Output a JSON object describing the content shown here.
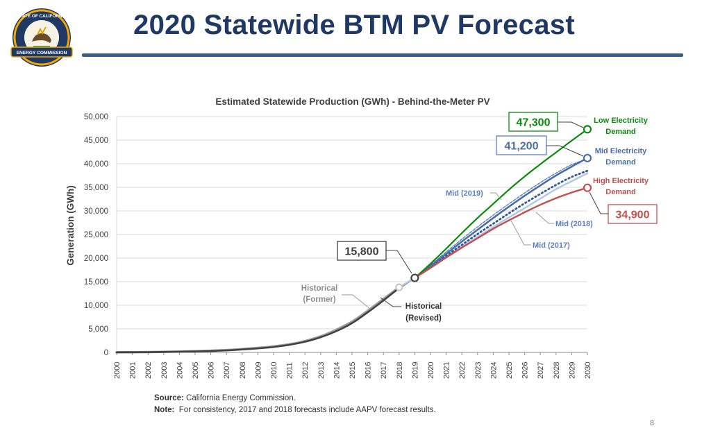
{
  "slide": {
    "title": "2020 Statewide BTM PV Forecast",
    "logo_text_top": "STATE OF CALIFORNIA",
    "logo_text_bottom": "ENERGY COMMISSION",
    "source_label": "Source:",
    "source_text": "California Energy Commission.",
    "note_label": "Note:",
    "note_text": "For consistency, 2017 and 2018 forecasts include AAPV forecast results.",
    "page_number": "8"
  },
  "chart_data": {
    "type": "line",
    "title": "Estimated Statewide Production (GWh) - Behind-the-Meter PV",
    "ylabel": "Generation (GWh)",
    "xlabel": "",
    "ylim": [
      0,
      50000
    ],
    "yticks": [
      0,
      5000,
      10000,
      15000,
      20000,
      25000,
      30000,
      35000,
      40000,
      45000,
      50000
    ],
    "ytick_labels": [
      "0",
      "5,000",
      "10,000",
      "15,000",
      "20,000",
      "25,000",
      "30,000",
      "35,000",
      "40,000",
      "45,000",
      "50,000"
    ],
    "x": [
      2000,
      2001,
      2002,
      2003,
      2004,
      2005,
      2006,
      2007,
      2008,
      2009,
      2010,
      2011,
      2012,
      2013,
      2014,
      2015,
      2016,
      2017,
      2018,
      2019,
      2020,
      2021,
      2022,
      2023,
      2024,
      2025,
      2026,
      2027,
      2028,
      2029,
      2030
    ],
    "xtick_labels": [
      "2000",
      "2001",
      "2002",
      "2003",
      "2004",
      "2005",
      "2006",
      "2007",
      "2008",
      "2009",
      "2010",
      "2011",
      "2012",
      "2013",
      "2014",
      "2015",
      "2016",
      "2017",
      "2018",
      "2019",
      "2020",
      "2021",
      "2022",
      "2023",
      "2024",
      "2025",
      "2026",
      "2027",
      "2028",
      "2029",
      "2030"
    ],
    "grid": true,
    "series": [
      {
        "name": "Historical (Former)",
        "color": "#9a9a9a",
        "style": "solid",
        "x": [
          2000,
          2001,
          2002,
          2003,
          2004,
          2005,
          2006,
          2007,
          2008,
          2009,
          2010,
          2011,
          2012,
          2013,
          2014,
          2015,
          2016,
          2017,
          2018
        ],
        "values": [
          20,
          40,
          70,
          120,
          180,
          250,
          350,
          500,
          700,
          950,
          1250,
          1700,
          2400,
          3400,
          4800,
          6500,
          8800,
          11300,
          13800
        ]
      },
      {
        "name": "Historical (Revised)",
        "color": "#404040",
        "style": "solid",
        "x": [
          2000,
          2001,
          2002,
          2003,
          2004,
          2005,
          2006,
          2007,
          2008,
          2009,
          2010,
          2011,
          2012,
          2013,
          2014,
          2015,
          2016,
          2017,
          2018,
          2019
        ],
        "values": [
          20,
          40,
          60,
          100,
          150,
          210,
          300,
          430,
          620,
          860,
          1150,
          1600,
          2250,
          3200,
          4500,
          6200,
          8500,
          11000,
          13600,
          15800
        ]
      },
      {
        "name": "Mid (2017)",
        "color": "#b4c7e7",
        "style": "solid",
        "x": [
          2018,
          2019,
          2020,
          2021,
          2022,
          2023,
          2024,
          2025,
          2026,
          2027,
          2028,
          2029,
          2030
        ],
        "values": [
          13800,
          15800,
          18000,
          20200,
          22400,
          24500,
          26600,
          28600,
          30600,
          32600,
          34600,
          36300,
          38000
        ]
      },
      {
        "name": "Mid (2018)",
        "color": "#2f5597",
        "style": "dotted",
        "x": [
          2019,
          2020,
          2021,
          2022,
          2023,
          2024,
          2025,
          2026,
          2027,
          2028,
          2029,
          2030
        ],
        "values": [
          15800,
          18100,
          20500,
          22800,
          25100,
          27300,
          29500,
          31600,
          33600,
          35500,
          37200,
          38500
        ]
      },
      {
        "name": "Mid (2019)",
        "color": "#5b7fbf",
        "style": "dashed",
        "x": [
          2019,
          2020,
          2021,
          2022,
          2023,
          2024,
          2025,
          2026,
          2027,
          2028,
          2029,
          2030
        ],
        "values": [
          15800,
          18500,
          21300,
          24000,
          26600,
          29100,
          31500,
          33800,
          36000,
          38000,
          39800,
          41000
        ]
      },
      {
        "name": "Mid Electricity Demand",
        "color": "#4a6fa5",
        "style": "solid",
        "x": [
          2019,
          2020,
          2021,
          2022,
          2023,
          2024,
          2025,
          2026,
          2027,
          2028,
          2029,
          2030
        ],
        "values": [
          15800,
          18300,
          20900,
          23500,
          26000,
          28500,
          30900,
          33200,
          35400,
          37500,
          39400,
          41200
        ]
      },
      {
        "name": "Low Electricity Demand",
        "color": "#0a8a0a",
        "style": "solid",
        "x": [
          2019,
          2020,
          2021,
          2022,
          2023,
          2024,
          2025,
          2026,
          2027,
          2028,
          2029,
          2030
        ],
        "values": [
          15800,
          18800,
          22000,
          25300,
          28500,
          31500,
          34500,
          37300,
          39900,
          42400,
          44900,
          47300
        ]
      },
      {
        "name": "High Electricity Demand",
        "color": "#c0504d",
        "style": "solid",
        "x": [
          2019,
          2020,
          2021,
          2022,
          2023,
          2024,
          2025,
          2026,
          2027,
          2028,
          2029,
          2030
        ],
        "values": [
          15800,
          17900,
          20100,
          22200,
          24200,
          26200,
          28000,
          29700,
          31300,
          32700,
          33900,
          34900
        ]
      }
    ],
    "annotations": {
      "callout_low": "47,300",
      "callout_mid": "41,200",
      "callout_high": "34,900",
      "callout_2019": "15,800",
      "label_low_1": "Low Electricity",
      "label_low_2": "Demand",
      "label_mid_1": "Mid Electricity",
      "label_mid_2": "Demand",
      "label_high_1": "High Electricity",
      "label_high_2": "Demand",
      "label_mid2019": "Mid (2019)",
      "label_mid2018": "Mid (2018)",
      "label_mid2017": "Mid (2017)",
      "label_hist_former_1": "Historical",
      "label_hist_former_2": "(Former)",
      "label_hist_revised_1": "Historical",
      "label_hist_revised_2": "(Revised)"
    }
  }
}
